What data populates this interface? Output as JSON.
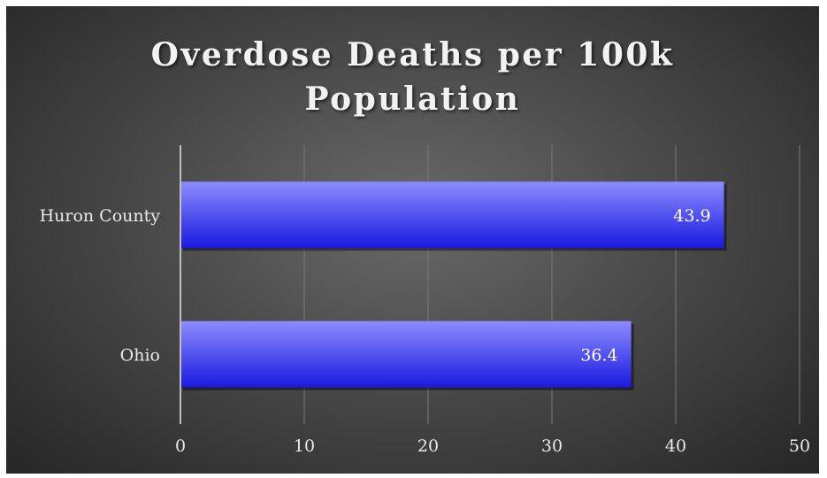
{
  "chart_data": {
    "type": "bar",
    "orientation": "horizontal",
    "title_line1": "Overdose Deaths per 100k",
    "title_line2": "Population",
    "categories": [
      "Huron County",
      "Ohio"
    ],
    "values": [
      43.9,
      36.4
    ],
    "data_labels": [
      "43.9",
      "36.4"
    ],
    "xlim": [
      0,
      50
    ],
    "x_ticks": [
      0,
      10,
      20,
      30,
      40,
      50
    ],
    "grid": "vertical",
    "legend": "none",
    "colors": {
      "bar_top": "#8c8cff",
      "bar_bottom": "#1a1ae0",
      "gridline": "#7a7a7a",
      "axis": "#bfbfbf"
    }
  }
}
